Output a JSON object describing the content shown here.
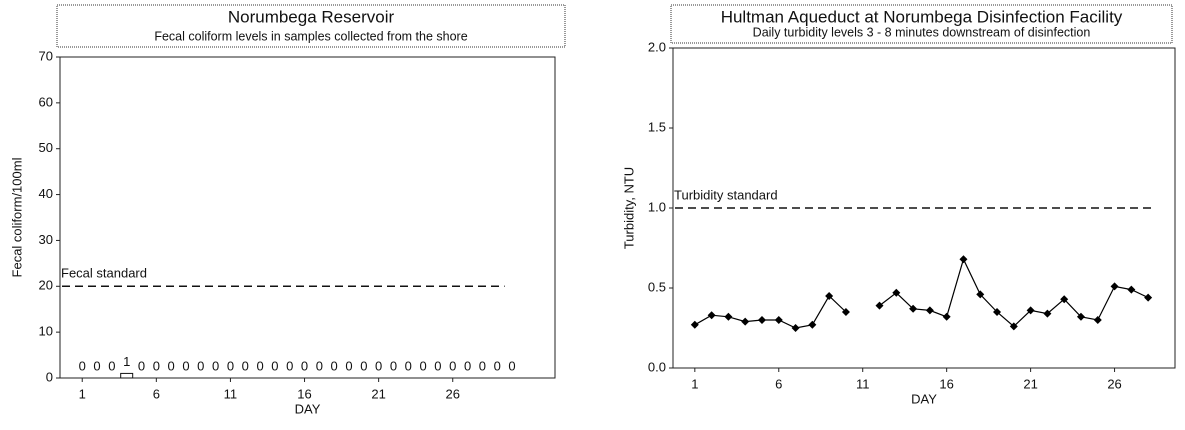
{
  "chart_data": [
    {
      "type": "bar",
      "title": "Norumbega Reservoir",
      "subtitle": "Fecal coliform levels in samples collected from the shore",
      "y_label": "Fecal coliform/100ml",
      "x_label": "DAY",
      "x": [
        1,
        2,
        3,
        4,
        5,
        6,
        7,
        8,
        9,
        10,
        11,
        12,
        13,
        14,
        15,
        16,
        17,
        18,
        19,
        20,
        21,
        22,
        23,
        24,
        25,
        26,
        27,
        28,
        29,
        30
      ],
      "values": [
        0,
        0,
        0,
        1,
        0,
        0,
        0,
        0,
        0,
        0,
        0,
        0,
        0,
        0,
        0,
        0,
        0,
        0,
        0,
        0,
        0,
        0,
        0,
        0,
        0,
        0,
        0,
        0,
        0,
        0
      ],
      "color": "#ffffff",
      "xlim": [
        -0.5,
        32.9
      ],
      "xticks": [
        1,
        6,
        11,
        16,
        21,
        26
      ],
      "ylim": [
        0,
        70
      ],
      "yticks": [
        0,
        10,
        20,
        30,
        40,
        50,
        60,
        70
      ],
      "reference": {
        "label": "Fecal standard",
        "value": 20
      }
    },
    {
      "type": "line",
      "title": "Hultman Aqueduct at Norumbega Disinfection Facility",
      "subtitle": "Daily turbidity levels 3 - 8 minutes downstream of disinfection",
      "y_label": "Turbidity, NTU",
      "x_label": "DAY",
      "x": [
        1,
        2,
        3,
        4,
        5,
        6,
        7,
        8,
        9,
        10,
        11,
        12,
        13,
        14,
        15,
        16,
        17,
        18,
        19,
        20,
        21,
        22,
        23,
        24,
        25,
        26,
        27,
        28
      ],
      "values": [
        0.27,
        0.33,
        0.32,
        0.29,
        0.3,
        0.3,
        0.25,
        0.27,
        0.45,
        0.35,
        null,
        0.39,
        0.47,
        0.37,
        0.36,
        0.32,
        0.68,
        0.46,
        0.35,
        0.26,
        0.36,
        0.34,
        0.43,
        0.32,
        0.3,
        0.51,
        0.49,
        0.44
      ],
      "color": "#000000",
      "xlim": [
        -0.3,
        29.6
      ],
      "xticks": [
        1,
        6,
        11,
        16,
        21,
        26
      ],
      "ylim": [
        0,
        2
      ],
      "yticks": [
        {
          "value": 0,
          "label": "0.0"
        },
        {
          "value": 0.5,
          "label": "0.5"
        },
        {
          "value": 1,
          "label": "1.0"
        },
        {
          "value": 1.5,
          "label": "1.5"
        },
        {
          "value": 2,
          "label": "2.0"
        }
      ],
      "reference": {
        "label": "Turbidity standard",
        "value": 1
      }
    }
  ]
}
